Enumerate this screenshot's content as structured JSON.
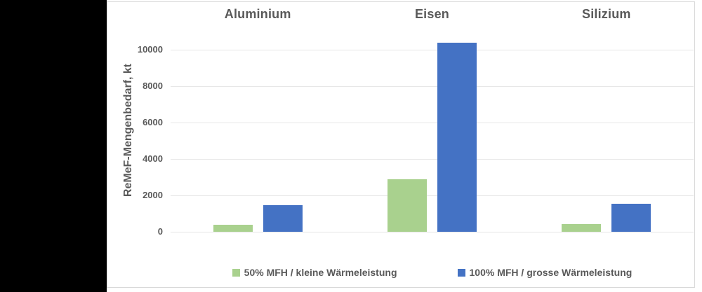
{
  "window": {
    "left_band_color": "#000000",
    "panel_background": "#ffffff",
    "panel_border_color": "#d9d9d9"
  },
  "chart_data": {
    "type": "bar",
    "title": "",
    "categories": [
      "Aluminium",
      "Eisen",
      "Silizium"
    ],
    "series": [
      {
        "name": "50% MFH / kleine Wärmeleistung",
        "color": "#a9d18e",
        "values": [
          400,
          2900,
          430
        ]
      },
      {
        "name": "100% MFH / grosse Wärmeleistung",
        "color": "#4472c4",
        "values": [
          1450,
          10400,
          1540
        ]
      }
    ],
    "ylabel": "ReMeF-Mengenbedarf, kt",
    "xlabel": "",
    "yticks": [
      0,
      2000,
      4000,
      6000,
      8000,
      10000
    ],
    "ylim": [
      0,
      10800
    ],
    "grid": true,
    "legend_position": "bottom",
    "text_color": "#595959",
    "gridline_color": "#e7e7e7"
  }
}
